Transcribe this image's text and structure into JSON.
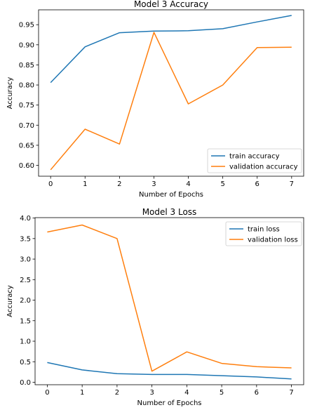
{
  "chart_data": [
    {
      "type": "line",
      "title": "Model 3 Accuracy",
      "xlabel": "Number of Epochs",
      "ylabel": "Accuracy",
      "x": [
        0,
        1,
        2,
        3,
        4,
        5,
        6,
        7
      ],
      "xlim": [
        -0.35,
        7.35
      ],
      "ylim": [
        0.573,
        0.987
      ],
      "xticks": [
        "0",
        "1",
        "2",
        "3",
        "4",
        "5",
        "6",
        "7"
      ],
      "yticks": [
        "0.60",
        "0.65",
        "0.70",
        "0.75",
        "0.80",
        "0.85",
        "0.90",
        "0.95"
      ],
      "grid": false,
      "legend_position": "lower right",
      "series": [
        {
          "name": "train accuracy",
          "color": "#1f77b4",
          "values": [
            0.806,
            0.895,
            0.93,
            0.934,
            0.935,
            0.94,
            0.957,
            0.973
          ]
        },
        {
          "name": "validation accuracy",
          "color": "#ff7f0e",
          "values": [
            0.589,
            0.69,
            0.653,
            0.931,
            0.753,
            0.8,
            0.893,
            0.894
          ]
        }
      ]
    },
    {
      "type": "line",
      "title": "Model 3 Loss",
      "xlabel": "Number of Epochs",
      "ylabel": "Accuracy",
      "x": [
        0,
        1,
        2,
        3,
        4,
        5,
        6,
        7
      ],
      "xlim": [
        -0.35,
        7.35
      ],
      "ylim": [
        -0.06,
        4.01
      ],
      "xticks": [
        "0",
        "1",
        "2",
        "3",
        "4",
        "5",
        "6",
        "7"
      ],
      "yticks": [
        "0.0",
        "0.5",
        "1.0",
        "1.5",
        "2.0",
        "2.5",
        "3.0",
        "3.5",
        "4.0"
      ],
      "grid": false,
      "legend_position": "upper right",
      "series": [
        {
          "name": "train loss",
          "color": "#1f77b4",
          "values": [
            0.48,
            0.3,
            0.21,
            0.19,
            0.19,
            0.16,
            0.13,
            0.08
          ]
        },
        {
          "name": "validation loss",
          "color": "#ff7f0e",
          "values": [
            3.66,
            3.83,
            3.5,
            0.27,
            0.74,
            0.46,
            0.38,
            0.35
          ]
        }
      ]
    }
  ]
}
